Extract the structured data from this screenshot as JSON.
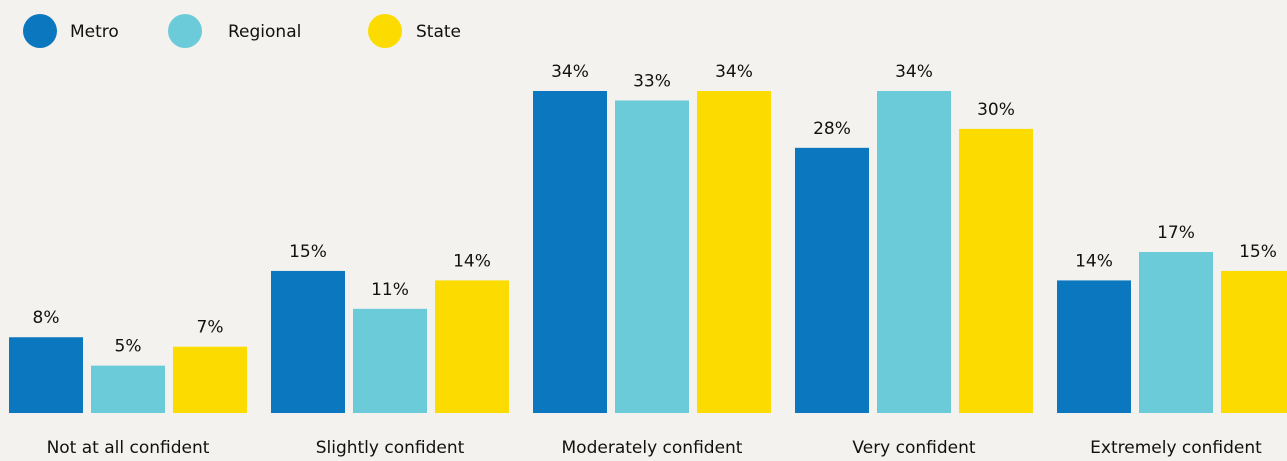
{
  "chart_data": {
    "type": "bar",
    "categories": [
      "Not at all confident",
      "Slightly confident",
      "Moderately confident",
      "Very confident",
      "Extremely confident"
    ],
    "series": [
      {
        "name": "Metro",
        "color": "#0a77be",
        "values": [
          8,
          15,
          34,
          28,
          14
        ],
        "value_labels": [
          "8%",
          "15%",
          "34%",
          "28%",
          "14%"
        ]
      },
      {
        "name": "Regional",
        "color": "#6ccbd9",
        "values": [
          5,
          11,
          33,
          34,
          17
        ],
        "value_labels": [
          "5%",
          "11%",
          "33%",
          "34%",
          "17%"
        ]
      },
      {
        "name": "State",
        "color": "#fcdc00",
        "values": [
          7,
          14,
          34,
          30,
          15
        ],
        "value_labels": [
          "7%",
          "14%",
          "34%",
          "30%",
          "15%"
        ]
      }
    ],
    "legend": "top-left"
  }
}
